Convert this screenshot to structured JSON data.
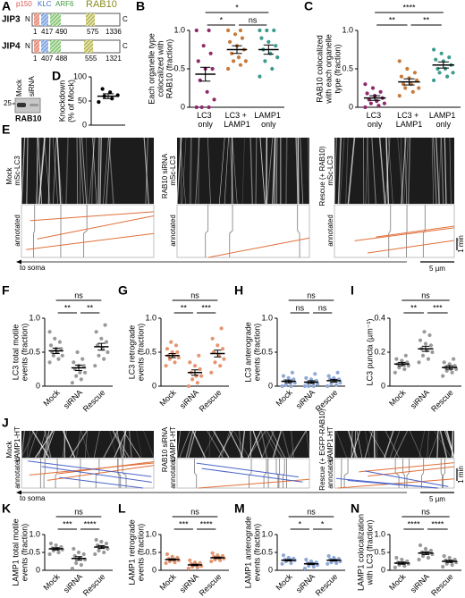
{
  "panel_a": {
    "letter": "A",
    "proteins": [
      {
        "name": "JIP3",
        "n": "N",
        "c": "C",
        "positions": [
          "1",
          "417",
          "490",
          "575",
          "1336"
        ]
      },
      {
        "name": "JIP4",
        "n": "N",
        "c": "C",
        "positions": [
          "1",
          "407",
          "488",
          "555",
          "1321"
        ]
      }
    ],
    "domains": [
      "p150",
      "KLC",
      "ARF6",
      "RAB10"
    ]
  },
  "blot": {
    "lanes": [
      "Mock",
      "siRNA"
    ],
    "marker": "25",
    "protein": "RAB10"
  },
  "panel_e": {
    "letter": "E",
    "to_soma": "to soma",
    "scale_x": "5 µm",
    "scale_t": "1 min",
    "panels": [
      {
        "label": "Mock",
        "channel": "mSc-LC3",
        "annotated": "annotated"
      },
      {
        "label": "RAB10 siRNA",
        "channel": "mSc-LC3",
        "annotated": "annotated"
      },
      {
        "label": "Rescue (+ RAB10)",
        "channel": "mSc-LC3",
        "annotated": "annotated"
      }
    ]
  },
  "panel_j": {
    "letter": "J",
    "to_soma": "to soma",
    "scale_x": "5 µm",
    "scale_t": "1 min",
    "panels": [
      {
        "label": "Mock",
        "channel": "LAMP1-HT",
        "annotated": "annotated"
      },
      {
        "label": "RAB10 siRNA",
        "channel": "LAMP1-HT",
        "annotated": "annotated"
      },
      {
        "label": "Rescue (+ EGFP-RAB10)",
        "channel": "LAMP1-HT",
        "annotated": "annotated"
      }
    ]
  },
  "chart_data": [
    {
      "type": "dot",
      "panel": "B",
      "ylabel": [
        "Each organelle type",
        "colocalized with",
        "RAB10 (fraction)"
      ],
      "categories": [
        "LC3 only",
        "LC3 + LAMP1",
        "LAMP1 only"
      ],
      "ylim": [
        0,
        1
      ],
      "yticks": [
        0,
        0.5,
        {
          "value": 1,
          "label": "1.0"
        }
      ],
      "groups": [
        {
          "color": "#8e2a6b",
          "mean": 0.43,
          "sem": 0.09,
          "values": [
            0,
            0,
            0,
            0.1,
            0.2,
            0.35,
            0.5,
            0.5,
            0.6,
            0.7,
            0.8,
            1,
            1
          ]
        },
        {
          "color": "#c77a3a",
          "mean": 0.75,
          "sem": 0.05,
          "values": [
            0.5,
            0.55,
            0.6,
            0.6,
            0.65,
            0.7,
            0.75,
            0.8,
            0.85,
            0.9,
            0.95,
            1,
            1
          ]
        },
        {
          "color": "#3a9c8c",
          "mean": 0.75,
          "sem": 0.06,
          "values": [
            0.4,
            0.5,
            0.6,
            0.65,
            0.7,
            0.75,
            0.8,
            0.85,
            0.9,
            1,
            1,
            1
          ]
        }
      ],
      "sig": [
        {
          "label": "*",
          "from": 0,
          "to": 2
        },
        {
          "label": "*",
          "from": 0,
          "to": 1
        },
        {
          "label": "ns",
          "from": 1,
          "to": 2
        }
      ]
    },
    {
      "type": "dot",
      "panel": "C",
      "ylabel": [
        "RAB10 colocalized",
        "with each organelle",
        "type (fraction)"
      ],
      "categories": [
        "LC3 only",
        "LC3 + LAMP1",
        "LAMP1 only"
      ],
      "ylim": [
        0,
        1
      ],
      "yticks": [
        0,
        0.5,
        {
          "value": 1,
          "label": "1.0"
        }
      ],
      "groups": [
        {
          "color": "#8e2a6b",
          "mean": 0.12,
          "sem": 0.03,
          "values": [
            0,
            0.02,
            0.05,
            0.05,
            0.08,
            0.1,
            0.12,
            0.15,
            0.18,
            0.2,
            0.25,
            0.3
          ]
        },
        {
          "color": "#c77a3a",
          "mean": 0.33,
          "sem": 0.04,
          "values": [
            0.15,
            0.2,
            0.25,
            0.25,
            0.3,
            0.3,
            0.35,
            0.38,
            0.4,
            0.45,
            0.5,
            0.6
          ]
        },
        {
          "color": "#3a9c8c",
          "mean": 0.55,
          "sem": 0.04,
          "values": [
            0.35,
            0.4,
            0.45,
            0.45,
            0.5,
            0.5,
            0.55,
            0.6,
            0.62,
            0.65,
            0.7,
            0.75
          ]
        }
      ],
      "sig": [
        {
          "label": "****",
          "from": 0,
          "to": 2
        },
        {
          "label": "**",
          "from": 0,
          "to": 1
        },
        {
          "label": "**",
          "from": 1,
          "to": 2
        }
      ]
    },
    {
      "type": "dot",
      "panel": "D",
      "ylabel": [
        "Knockdown",
        "(% of Mock)"
      ],
      "categories": [
        null
      ],
      "ylim": [
        0,
        100
      ],
      "yticks": [
        0,
        50,
        100
      ],
      "groups": [
        {
          "color": "#000000",
          "mean": 60,
          "sem": 5,
          "values": [
            48,
            55,
            60,
            62,
            68,
            75
          ]
        }
      ],
      "sig": []
    },
    {
      "type": "dot",
      "panel": "F",
      "ylabel": [
        "LC3 total motile",
        "events (fraction)"
      ],
      "categories": [
        "Mock",
        "siRNA",
        "Rescue"
      ],
      "ylim": [
        0,
        1
      ],
      "yticks": [
        0,
        0.5,
        {
          "value": 1,
          "label": "1.0"
        }
      ],
      "groups": [
        {
          "color": "#999999",
          "mean": 0.52,
          "sem": 0.04,
          "values": [
            0.35,
            0.4,
            0.45,
            0.45,
            0.5,
            0.5,
            0.55,
            0.55,
            0.6,
            0.65,
            0.7,
            0.8
          ]
        },
        {
          "color": "#999999",
          "mean": 0.27,
          "sem": 0.04,
          "values": [
            0.05,
            0.1,
            0.15,
            0.2,
            0.2,
            0.25,
            0.3,
            0.3,
            0.35,
            0.4,
            0.5
          ]
        },
        {
          "color": "#999999",
          "mean": 0.58,
          "sem": 0.05,
          "values": [
            0.3,
            0.4,
            0.45,
            0.5,
            0.55,
            0.6,
            0.65,
            0.7,
            0.8,
            0.9
          ]
        }
      ],
      "sig": [
        {
          "label": "ns",
          "from": 0,
          "to": 2
        },
        {
          "label": "**",
          "from": 0,
          "to": 1
        },
        {
          "label": "**",
          "from": 1,
          "to": 2
        }
      ]
    },
    {
      "type": "dot",
      "panel": "G",
      "ylabel": [
        "LC3 retrograde",
        "events (fraction)"
      ],
      "categories": [
        "Mock",
        "siRNA",
        "Rescue"
      ],
      "ylim": [
        0,
        1
      ],
      "yticks": [
        0,
        0.5,
        {
          "value": 1,
          "label": "1.0"
        }
      ],
      "groups": [
        {
          "color": "#e59570",
          "mean": 0.45,
          "sem": 0.03,
          "values": [
            0.3,
            0.35,
            0.4,
            0.42,
            0.45,
            0.45,
            0.5,
            0.5,
            0.55,
            0.6,
            0.65
          ]
        },
        {
          "color": "#e59570",
          "mean": 0.2,
          "sem": 0.04,
          "values": [
            0,
            0.05,
            0.1,
            0.15,
            0.15,
            0.2,
            0.25,
            0.3,
            0.35,
            0.45
          ]
        },
        {
          "color": "#e59570",
          "mean": 0.48,
          "sem": 0.05,
          "values": [
            0.2,
            0.3,
            0.35,
            0.4,
            0.45,
            0.5,
            0.55,
            0.6,
            0.7,
            0.85
          ]
        }
      ],
      "sig": [
        {
          "label": "ns",
          "from": 0,
          "to": 2
        },
        {
          "label": "**",
          "from": 0,
          "to": 1
        },
        {
          "label": "***",
          "from": 1,
          "to": 2
        }
      ]
    },
    {
      "type": "dot",
      "panel": "H",
      "ylabel": [
        "LC3 anterograde",
        "events (fraction)"
      ],
      "categories": [
        "Mock",
        "siRNA",
        "Rescue"
      ],
      "ylim": [
        0,
        1
      ],
      "yticks": [
        0,
        0.5,
        {
          "value": 1,
          "label": "1.0"
        }
      ],
      "groups": [
        {
          "color": "#8fa8d6",
          "mean": 0.07,
          "sem": 0.02,
          "values": [
            0,
            0,
            0.02,
            0.05,
            0.05,
            0.08,
            0.1,
            0.12,
            0.15,
            0.2
          ]
        },
        {
          "color": "#8fa8d6",
          "mean": 0.06,
          "sem": 0.02,
          "values": [
            0,
            0,
            0,
            0.03,
            0.05,
            0.05,
            0.08,
            0.1,
            0.12,
            0.18
          ]
        },
        {
          "color": "#8fa8d6",
          "mean": 0.08,
          "sem": 0.02,
          "values": [
            0,
            0.02,
            0.04,
            0.05,
            0.08,
            0.1,
            0.1,
            0.12,
            0.15,
            0.2
          ]
        }
      ],
      "sig": [
        {
          "label": "ns",
          "from": 0,
          "to": 2
        },
        {
          "label": "ns",
          "from": 0,
          "to": 1
        },
        {
          "label": "ns",
          "from": 1,
          "to": 2
        }
      ]
    },
    {
      "type": "dot",
      "panel": "I",
      "ylabel": [
        "LC3 puncta (µm⁻¹)"
      ],
      "categories": [
        "Mock",
        "siRNA",
        "Rescue"
      ],
      "ylim": [
        0,
        0.4
      ],
      "yticks": [
        0,
        0.2,
        0.4
      ],
      "groups": [
        {
          "color": "#999999",
          "mean": 0.13,
          "sem": 0.01,
          "values": [
            0.08,
            0.1,
            0.11,
            0.12,
            0.13,
            0.13,
            0.14,
            0.15,
            0.16,
            0.18
          ]
        },
        {
          "color": "#999999",
          "mean": 0.22,
          "sem": 0.015,
          "values": [
            0.14,
            0.16,
            0.18,
            0.2,
            0.21,
            0.22,
            0.24,
            0.25,
            0.27,
            0.3,
            0.32
          ]
        },
        {
          "color": "#999999",
          "mean": 0.11,
          "sem": 0.01,
          "values": [
            0.06,
            0.08,
            0.09,
            0.1,
            0.1,
            0.11,
            0.12,
            0.13,
            0.14,
            0.16
          ]
        }
      ],
      "sig": [
        {
          "label": "ns",
          "from": 0,
          "to": 2
        },
        {
          "label": "**",
          "from": 0,
          "to": 1
        },
        {
          "label": "***",
          "from": 1,
          "to": 2
        }
      ]
    },
    {
      "type": "dot",
      "panel": "K",
      "ylabel": [
        "LAMP1 total motile",
        "events (fraction)"
      ],
      "categories": [
        "Mock",
        "siRNA",
        "Rescue"
      ],
      "ylim": [
        0,
        1
      ],
      "yticks": [
        0,
        0.5,
        {
          "value": 1,
          "label": "1.0"
        }
      ],
      "groups": [
        {
          "color": "#999999",
          "mean": 0.6,
          "sem": 0.03,
          "values": [
            0.45,
            0.5,
            0.55,
            0.58,
            0.6,
            0.62,
            0.65,
            0.7,
            0.75
          ]
        },
        {
          "color": "#999999",
          "mean": 0.33,
          "sem": 0.05,
          "values": [
            0.05,
            0.15,
            0.2,
            0.3,
            0.35,
            0.4,
            0.45,
            0.5,
            0.6
          ]
        },
        {
          "color": "#999999",
          "mean": 0.65,
          "sem": 0.04,
          "values": [
            0.45,
            0.5,
            0.55,
            0.6,
            0.65,
            0.7,
            0.75,
            0.8,
            0.85
          ]
        }
      ],
      "sig": [
        {
          "label": "ns",
          "from": 0,
          "to": 2
        },
        {
          "label": "***",
          "from": 0,
          "to": 1
        },
        {
          "label": "****",
          "from": 1,
          "to": 2
        }
      ]
    },
    {
      "type": "dot",
      "panel": "L",
      "ylabel": [
        "LAMP1 retrograde",
        "events (fraction)"
      ],
      "categories": [
        "Mock",
        "siRNA",
        "Rescue"
      ],
      "ylim": [
        0,
        1
      ],
      "yticks": [
        0,
        0.5,
        {
          "value": 1,
          "label": "1.0"
        }
      ],
      "groups": [
        {
          "color": "#e59570",
          "mean": 0.3,
          "sem": 0.02,
          "values": [
            0.2,
            0.22,
            0.25,
            0.28,
            0.3,
            0.32,
            0.35,
            0.38,
            0.45
          ]
        },
        {
          "color": "#e59570",
          "mean": 0.15,
          "sem": 0.02,
          "values": [
            0.05,
            0.08,
            0.1,
            0.12,
            0.15,
            0.18,
            0.2,
            0.22,
            0.28
          ]
        },
        {
          "color": "#e59570",
          "mean": 0.35,
          "sem": 0.02,
          "values": [
            0.25,
            0.28,
            0.3,
            0.33,
            0.35,
            0.38,
            0.4,
            0.42,
            0.48
          ]
        }
      ],
      "sig": [
        {
          "label": "ns",
          "from": 0,
          "to": 2
        },
        {
          "label": "***",
          "from": 0,
          "to": 1
        },
        {
          "label": "****",
          "from": 1,
          "to": 2
        }
      ]
    },
    {
      "type": "dot",
      "panel": "M",
      "ylabel": [
        "LAMP1 anterograde",
        "events (fraction)"
      ],
      "categories": [
        "Mock",
        "siRNA",
        "Rescue"
      ],
      "ylim": [
        0,
        1
      ],
      "yticks": [
        0,
        0.5,
        {
          "value": 1,
          "label": "1.0"
        }
      ],
      "groups": [
        {
          "color": "#8fa8d6",
          "mean": 0.28,
          "sem": 0.02,
          "values": [
            0.18,
            0.2,
            0.25,
            0.28,
            0.3,
            0.3,
            0.33,
            0.35,
            0.42
          ]
        },
        {
          "color": "#8fa8d6",
          "mean": 0.18,
          "sem": 0.02,
          "values": [
            0.05,
            0.1,
            0.12,
            0.15,
            0.18,
            0.2,
            0.22,
            0.25,
            0.3
          ]
        },
        {
          "color": "#8fa8d6",
          "mean": 0.28,
          "sem": 0.02,
          "values": [
            0.18,
            0.2,
            0.22,
            0.25,
            0.28,
            0.3,
            0.32,
            0.35,
            0.4
          ]
        }
      ],
      "sig": [
        {
          "label": "ns",
          "from": 0,
          "to": 2
        },
        {
          "label": "*",
          "from": 0,
          "to": 1
        },
        {
          "label": "*",
          "from": 1,
          "to": 2
        }
      ]
    },
    {
      "type": "dot",
      "panel": "N",
      "ylabel": [
        "LAMP1 colocalization",
        "with LC3 (fraction)"
      ],
      "categories": [
        "Mock",
        "siRNA",
        "Rescue"
      ],
      "ylim": [
        0,
        1
      ],
      "yticks": [
        0,
        0.5,
        {
          "value": 1,
          "label": "1.0"
        }
      ],
      "groups": [
        {
          "color": "#999999",
          "mean": 0.2,
          "sem": 0.03,
          "values": [
            0.08,
            0.12,
            0.15,
            0.18,
            0.2,
            0.22,
            0.25,
            0.3,
            0.35
          ]
        },
        {
          "color": "#999999",
          "mean": 0.48,
          "sem": 0.04,
          "values": [
            0.3,
            0.35,
            0.4,
            0.45,
            0.48,
            0.5,
            0.55,
            0.6,
            0.7
          ]
        },
        {
          "color": "#999999",
          "mean": 0.25,
          "sem": 0.03,
          "values": [
            0.1,
            0.15,
            0.18,
            0.22,
            0.25,
            0.28,
            0.3,
            0.35,
            0.4
          ]
        }
      ],
      "sig": [
        {
          "label": "ns",
          "from": 0,
          "to": 2
        },
        {
          "label": "****",
          "from": 0,
          "to": 1
        },
        {
          "label": "****",
          "from": 1,
          "to": 2
        }
      ]
    }
  ]
}
